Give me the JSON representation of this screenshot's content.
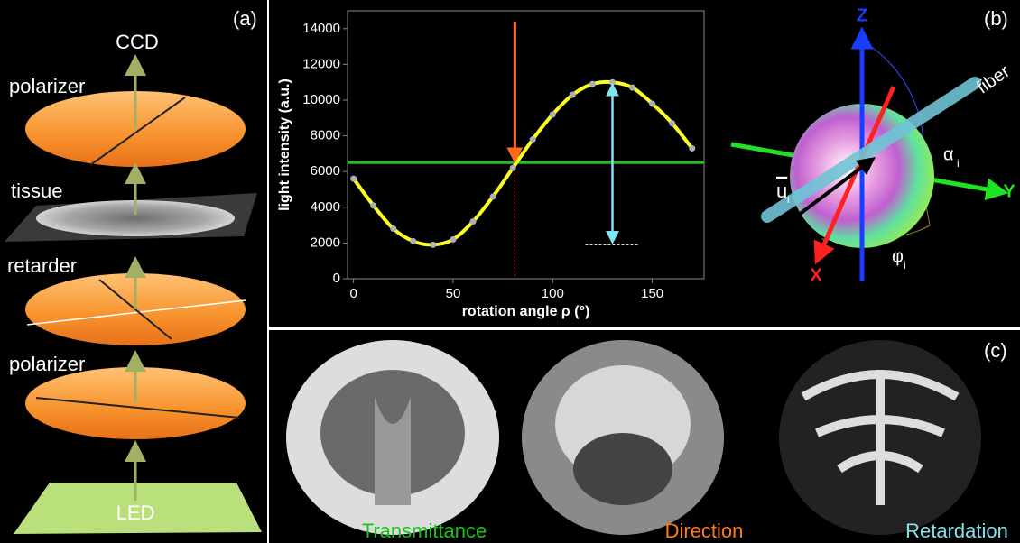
{
  "panel_a": {
    "label": "(a)",
    "ccd": "CCD",
    "layers": [
      "polarizer",
      "tissue",
      "retarder",
      "polarizer"
    ],
    "source": "LED"
  },
  "chart_data": {
    "type": "line",
    "panel_label": "(b)",
    "x_label": "rotation angle ρ (°)",
    "y_label": "light intensity (a.u.)",
    "x": [
      0,
      10,
      20,
      30,
      40,
      50,
      60,
      70,
      80,
      90,
      100,
      110,
      120,
      130,
      140,
      150,
      160,
      170
    ],
    "series": [
      {
        "color": "#ffff22",
        "marker_color": "#b0b0b0",
        "values": [
          5600,
          4100,
          2800,
          2100,
          1900,
          2200,
          3200,
          4600,
          6200,
          7800,
          9200,
          10300,
          10900,
          11000,
          10700,
          9800,
          8700,
          7300
        ]
      }
    ],
    "xlim": [
      -3,
      176
    ],
    "xticks": [
      0,
      50,
      100,
      150
    ],
    "ylim": [
      0,
      15000
    ],
    "yticks": [
      0,
      2000,
      4000,
      6000,
      8000,
      10000,
      12000,
      14000
    ],
    "annotations": {
      "mean": 6500,
      "direction": 81,
      "arrow_top": 14400,
      "retardation_x": 130,
      "retardation_min": 1900,
      "retardation_max": 11000
    }
  },
  "panel_b_diagram": {
    "axes": [
      "Z",
      "Y",
      "X"
    ],
    "fiber": "fiber",
    "alpha": "α",
    "alpha_sub": "i",
    "phi": "φ",
    "phi_sub": "i",
    "u": "u",
    "u_sub": "i"
  },
  "panel_c": {
    "label": "(c)",
    "images": [
      "Transmittance",
      "Direction",
      "Retardation"
    ]
  }
}
